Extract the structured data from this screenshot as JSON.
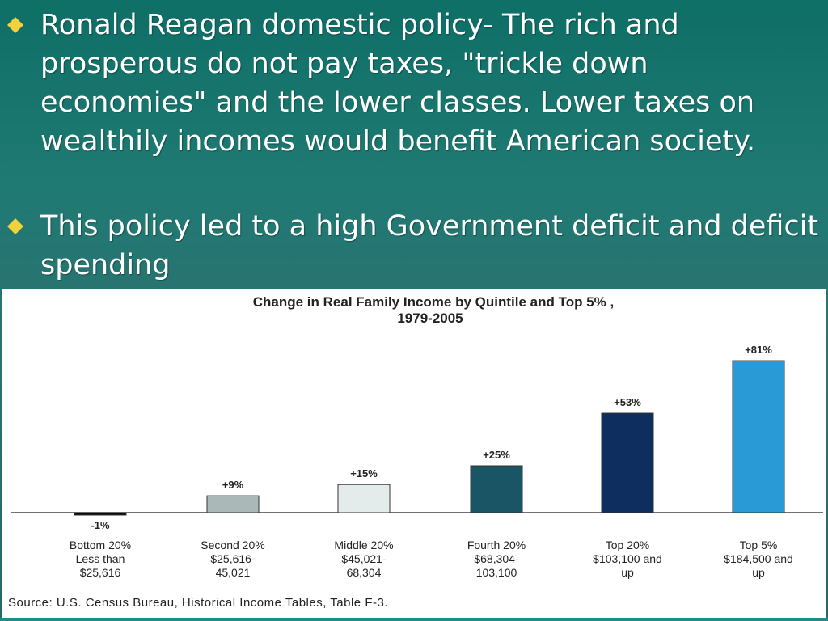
{
  "bullets": [
    {
      "text": "Ronald Reagan domestic policy- The rich and prosperous do not pay taxes,  \"trickle down economies\" and the  lower classes. Lower taxes on wealthily incomes would benefit American society."
    },
    {
      "text": "This policy led to a high Government deficit and deficit spending"
    }
  ],
  "colors": {
    "bullet_marker": "#f2d23c",
    "background": "#1f7a73",
    "bar_colors": [
      "#0a0a0a",
      "#aab8b8",
      "#e4ebeb",
      "#1a5566",
      "#0d2e5e",
      "#2a9ad6"
    ]
  },
  "chart_data": {
    "type": "bar",
    "title": "Change in Real Family Income by Quintile and Top 5% ,",
    "subtitle": "1979-2005",
    "categories": [
      [
        "Bottom 20%",
        "Less than",
        "$25,616"
      ],
      [
        "Second 20%",
        "$25,616-",
        "45,021"
      ],
      [
        "Middle 20%",
        "$45,021-",
        "68,304"
      ],
      [
        "Fourth 20%",
        "$68,304-",
        "103,100"
      ],
      [
        "Top 20%",
        "$103,100 and",
        "up"
      ],
      [
        "Top 5%",
        "$184,500 and",
        "up"
      ]
    ],
    "values": [
      -1,
      9,
      15,
      25,
      53,
      81
    ],
    "data_labels": [
      "-1%",
      "+9%",
      "+15%",
      "+25%",
      "+53%",
      "+81%"
    ],
    "ylim": [
      -1,
      81
    ],
    "grid": false,
    "source": "Source: U.S. Census Bureau, Historical Income Tables, Table F-3."
  }
}
